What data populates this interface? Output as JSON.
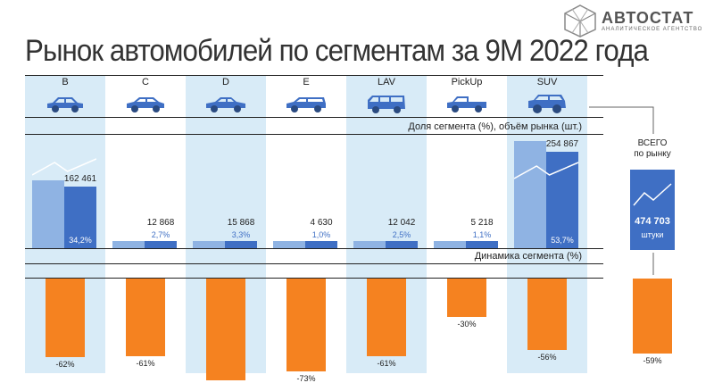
{
  "logo": {
    "name": "АВТОСТАТ",
    "subtitle": "АНАЛИТИЧЕСКОЕ АГЕНТСТВО"
  },
  "title": "Рынок автомобилей по сегментам за 9М 2022 года",
  "band_labels": {
    "share_volume": "Доля сегмента (%), объём рынка (шт.)",
    "dynamics": "Динамика сегмента (%)"
  },
  "total": {
    "caption_line1": "ВСЕГО",
    "caption_line2": "по рынку",
    "value": "474 703",
    "unit": "штуки"
  },
  "colors": {
    "stripe": "#d8ebf7",
    "share_bar_light": "#8fb3e3",
    "share_bar_dark": "#3f6fc4",
    "dynamics_bar": "#f58220"
  },
  "chart_data": {
    "type": "bar",
    "categories": [
      "B",
      "C",
      "D",
      "E",
      "LAV",
      "PickUp",
      "SUV"
    ],
    "volume_labels": [
      "162 461",
      "12 868",
      "15 868",
      "4 630",
      "12 042",
      "5 218",
      "254 867"
    ],
    "share_labels": [
      "34,2%",
      "2,7%",
      "3,3%",
      "1,0%",
      "2,5%",
      "1,1%",
      "53,7%"
    ],
    "dynamics_labels": [
      "-62%",
      "-61%",
      "",
      "-73%",
      "-61%",
      "-30%",
      "-56%"
    ],
    "series": [
      {
        "values": [
          34.2,
          2.7,
          3.3,
          1.0,
          2.5,
          1.1,
          53.7
        ]
      },
      {
        "values": [
          162461,
          12868,
          15868,
          4630,
          12042,
          5218,
          254867
        ]
      },
      {
        "values": [
          -62,
          -61,
          null,
          -73,
          -61,
          -30,
          -56
        ]
      }
    ],
    "total": {
      "volume": 474703,
      "dynamics": -59,
      "dynamics_label": "-59%"
    }
  }
}
